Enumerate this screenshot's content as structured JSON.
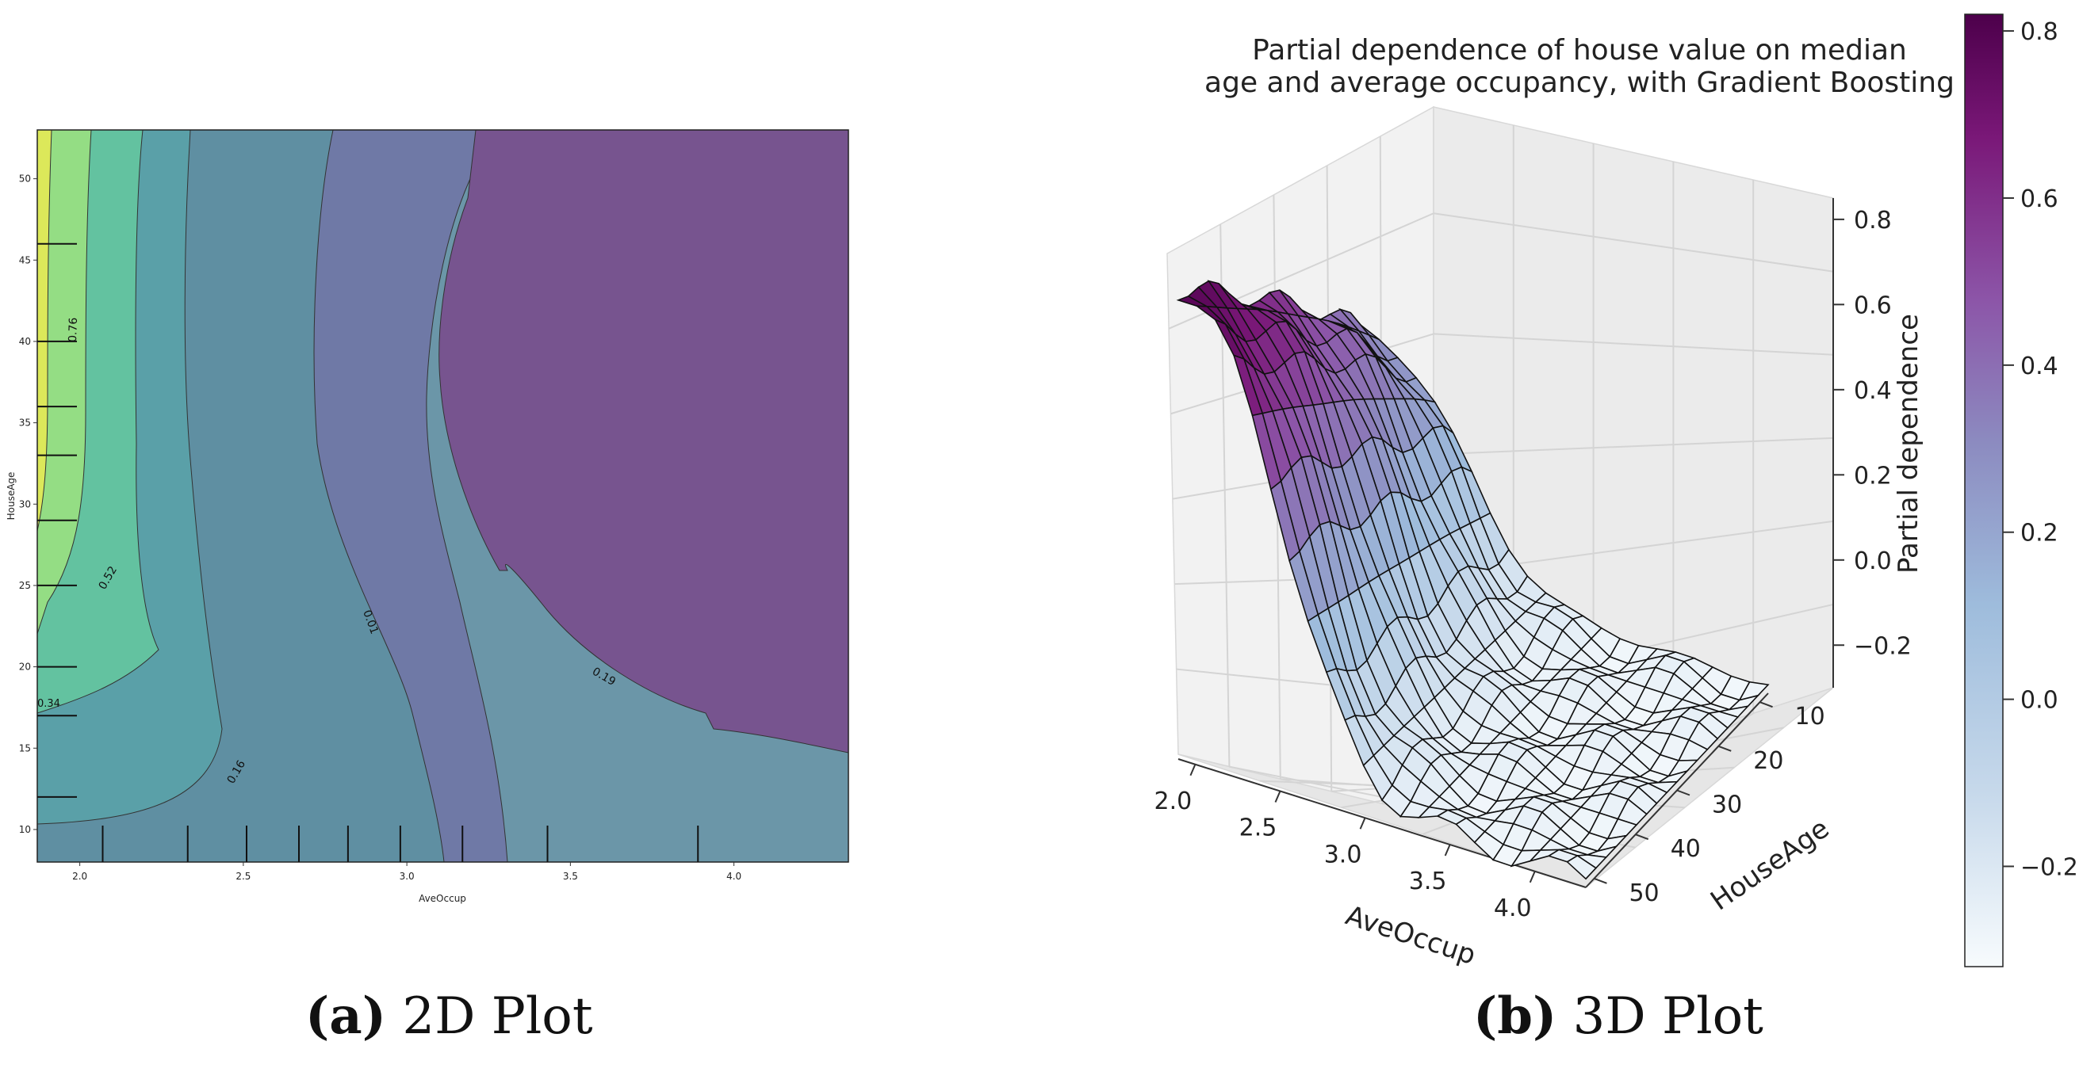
{
  "panel_a": {
    "caption_label": "(a)",
    "caption_text": "2D Plot",
    "colors": [
      "#6b96a8",
      "#5f8fa2",
      "#5aa0a8",
      "#63c2a0",
      "#94dd84",
      "#dce85a"
    ],
    "far_colors": [
      "#6f79a6",
      "#77548f"
    ],
    "boundary_color": "#333333"
  },
  "panel_b": {
    "caption_label": "(b)",
    "caption_text": "3D Plot",
    "colorbar_ticks": [
      "0.8",
      "0.6",
      "0.4",
      "0.2",
      "0.0",
      "−0.2"
    ],
    "colormap": [
      "#f7fbfd",
      "#c7d9eb",
      "#9ebcdc",
      "#8c8bc0",
      "#8c55a8",
      "#7a1878",
      "#4d004b"
    ]
  },
  "chart_data": [
    {
      "type": "contour",
      "title": "",
      "xlabel": "AveOccup",
      "ylabel": "HouseAge",
      "xlim": [
        1.87,
        4.35
      ],
      "ylim": [
        8,
        53
      ],
      "xticks": [
        "2.0",
        "2.5",
        "3.0",
        "3.5",
        "4.0"
      ],
      "yticks": [
        "10",
        "15",
        "20",
        "25",
        "30",
        "35",
        "40",
        "45",
        "50"
      ],
      "contour_levels": [
        "0.76",
        "0.52",
        "0.34",
        "0.16",
        "0.01",
        "0.19"
      ],
      "rug_x": [
        2.07,
        2.33,
        2.51,
        2.67,
        2.82,
        2.98,
        3.17,
        3.43,
        3.89
      ],
      "rug_y": [
        12,
        17,
        20,
        25,
        29,
        33,
        36,
        40,
        46
      ]
    },
    {
      "type": "surface3d",
      "title": "Partial dependence of house value on median\nage and average occupancy, with Gradient Boosting",
      "xlabel": "AveOccup",
      "ylabel": "HouseAge",
      "zlabel": "Partial dependence",
      "xticks": [
        "4.0",
        "3.5",
        "3.0",
        "2.5",
        "2.0"
      ],
      "yticks": [
        "10",
        "20",
        "30",
        "40",
        "50"
      ],
      "zticks": [
        "0.8",
        "0.6",
        "0.4",
        "0.2",
        "0.0",
        "−0.2"
      ],
      "xlim": [
        1.9,
        4.3
      ],
      "ylim": [
        8,
        52
      ],
      "zlim": [
        -0.3,
        0.85
      ],
      "value_range": [
        -0.32,
        0.82
      ]
    }
  ]
}
